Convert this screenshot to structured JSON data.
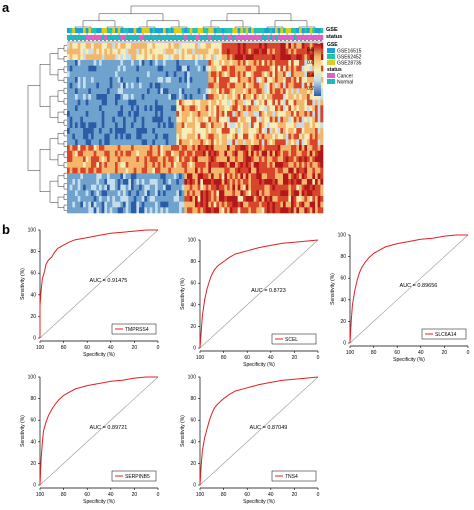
{
  "figure": {
    "panel_a_label": "a",
    "panel_b_label": "b"
  },
  "heatmap": {
    "legend_gse_title": "GSE",
    "legend_status_title": "status",
    "track_labels": [
      "GSE",
      "status"
    ],
    "gse_levels": [
      {
        "label": "GSE16515",
        "color": "#1fa0d4"
      },
      {
        "label": "GSE62452",
        "color": "#22c3b0"
      },
      {
        "label": "GSE28735",
        "color": "#d8d020"
      }
    ],
    "status_levels": [
      {
        "label": "Cancer",
        "color": "#e060c8"
      },
      {
        "label": "Normal",
        "color": "#1fb7c0"
      }
    ],
    "colorbar_ticks": [
      "0.8",
      "0.6",
      "0.4",
      "0.2"
    ],
    "colorscale": [
      "#2a5ca8",
      "#6fa2cc",
      "#c6ddeb",
      "#f5edb8",
      "#f3b66a",
      "#d8452a",
      "#b2171c"
    ]
  },
  "chart_data": [
    {
      "type": "line",
      "gene": "TMPRSS4",
      "auc_text": "AUC = 0.91475",
      "xlabel": "Specificity (%)",
      "ylabel": "Sensitivity (%)",
      "xlim": [
        100,
        0
      ],
      "ylim": [
        0,
        100
      ],
      "xticks": [
        "100",
        "80",
        "60",
        "40",
        "20",
        "0"
      ],
      "yticks": [
        "0",
        "20",
        "40",
        "60",
        "80",
        "100"
      ],
      "x": [
        100,
        100,
        99,
        98,
        96,
        95,
        93,
        90,
        88,
        85,
        80,
        75,
        70,
        60,
        50,
        40,
        30,
        20,
        10,
        0
      ],
      "y": [
        0,
        30,
        45,
        55,
        62,
        68,
        72,
        75,
        79,
        83,
        86,
        89,
        91,
        93,
        95,
        97,
        98,
        99,
        100,
        100
      ]
    },
    {
      "type": "line",
      "gene": "SCEL",
      "auc_text": "AUC = 0.8723",
      "xlabel": "Specificity (%)",
      "ylabel": "Sensitivity (%)",
      "xlim": [
        100,
        0
      ],
      "ylim": [
        0,
        100
      ],
      "xticks": [
        "100",
        "80",
        "60",
        "40",
        "20",
        "0"
      ],
      "yticks": [
        "0",
        "20",
        "40",
        "60",
        "80",
        "100"
      ],
      "x": [
        100,
        99,
        98,
        96,
        94,
        92,
        90,
        88,
        85,
        80,
        75,
        70,
        60,
        50,
        40,
        30,
        20,
        10,
        0
      ],
      "y": [
        0,
        15,
        30,
        45,
        55,
        62,
        68,
        72,
        76,
        80,
        84,
        87,
        90,
        93,
        95,
        97,
        98,
        99,
        100
      ]
    },
    {
      "type": "line",
      "gene": "SLC6A14",
      "auc_text": "AUC = 0.89656",
      "xlabel": "Specificity (%)",
      "ylabel": "Sensitivity (%)",
      "xlim": [
        100,
        0
      ],
      "ylim": [
        0,
        100
      ],
      "xticks": [
        "100",
        "80",
        "60",
        "40",
        "20",
        "0"
      ],
      "yticks": [
        "0",
        "20",
        "40",
        "60",
        "80",
        "100"
      ],
      "x": [
        100,
        99,
        98,
        96,
        94,
        92,
        90,
        87,
        84,
        80,
        75,
        70,
        60,
        50,
        40,
        30,
        20,
        10,
        0
      ],
      "y": [
        0,
        20,
        35,
        48,
        58,
        65,
        70,
        75,
        79,
        83,
        86,
        89,
        92,
        94,
        96,
        97,
        99,
        100,
        100
      ]
    },
    {
      "type": "line",
      "gene": "SERPINB5",
      "auc_text": "AUC = 0.89721",
      "xlabel": "Specificity (%)",
      "ylabel": "Sensitivity (%)",
      "xlim": [
        100,
        0
      ],
      "ylim": [
        0,
        100
      ],
      "xticks": [
        "100",
        "80",
        "60",
        "40",
        "20",
        "0"
      ],
      "yticks": [
        "0",
        "20",
        "40",
        "60",
        "80",
        "100"
      ],
      "x": [
        100,
        99,
        98,
        97,
        95,
        93,
        90,
        87,
        84,
        80,
        75,
        70,
        60,
        50,
        40,
        30,
        20,
        10,
        0
      ],
      "y": [
        0,
        25,
        40,
        50,
        58,
        64,
        70,
        75,
        79,
        83,
        86,
        89,
        92,
        94,
        96,
        97,
        99,
        100,
        100
      ]
    },
    {
      "type": "line",
      "gene": "TNS4",
      "auc_text": "AUC = 0.87049",
      "xlabel": "Specificity (%)",
      "ylabel": "Sensitivity (%)",
      "xlim": [
        100,
        0
      ],
      "ylim": [
        0,
        100
      ],
      "xticks": [
        "100",
        "80",
        "60",
        "40",
        "20",
        "0"
      ],
      "yticks": [
        "0",
        "20",
        "40",
        "60",
        "80",
        "100"
      ],
      "x": [
        100,
        99,
        98,
        96,
        94,
        92,
        90,
        88,
        85,
        80,
        75,
        70,
        60,
        50,
        40,
        30,
        20,
        10,
        0
      ],
      "y": [
        0,
        18,
        32,
        44,
        52,
        60,
        66,
        71,
        75,
        80,
        84,
        87,
        90,
        93,
        95,
        97,
        98,
        99,
        100
      ]
    }
  ]
}
